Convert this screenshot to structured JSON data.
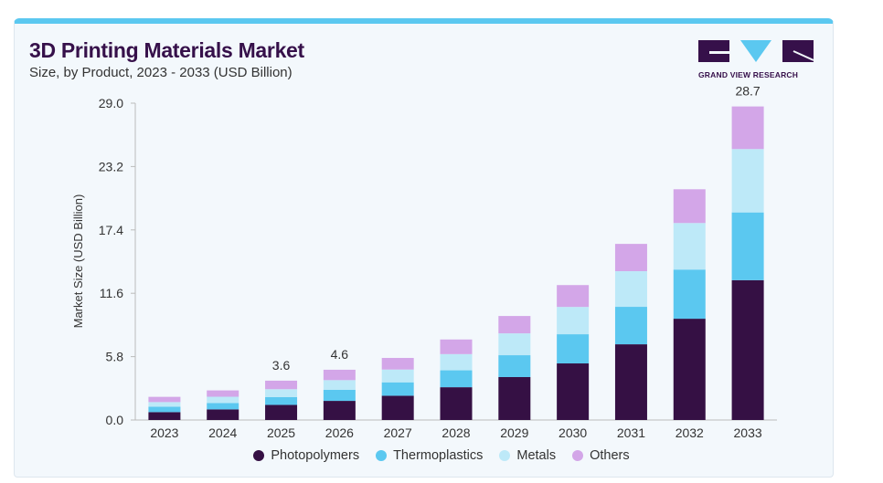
{
  "header": {
    "title": "3D Printing Materials Market",
    "subtitle": "Size, by Product, 2023 - 2033 (USD Billion)",
    "logo_text": "GRAND VIEW RESEARCH"
  },
  "colors": {
    "Photopolymers": "#351044",
    "Thermoplastics": "#5bc8f0",
    "Metals": "#bde9f8",
    "Others": "#d3a6e8",
    "accent": "#5bc8f0"
  },
  "chart_data": {
    "type": "bar",
    "stacked": true,
    "title": "3D Printing Materials Market",
    "subtitle": "Size, by Product, 2023 - 2033 (USD Billion)",
    "xlabel": "",
    "ylabel": "Market Size (USD Billion)",
    "ylim": [
      0,
      29
    ],
    "yticks": [
      "0.0",
      "5.8",
      "11.6",
      "17.4",
      "23.2",
      "29.0"
    ],
    "categories": [
      "2023",
      "2024",
      "2025",
      "2026",
      "2027",
      "2028",
      "2029",
      "2030",
      "2031",
      "2032",
      "2033"
    ],
    "series": [
      {
        "name": "Photopolymers",
        "values": [
          0.72,
          0.97,
          1.38,
          1.75,
          2.22,
          3.0,
          3.93,
          5.18,
          6.93,
          9.27,
          12.8
        ]
      },
      {
        "name": "Thermoplastics",
        "values": [
          0.5,
          0.58,
          0.72,
          1.01,
          1.23,
          1.55,
          2.0,
          2.67,
          3.43,
          4.5,
          6.2
        ]
      },
      {
        "name": "Metals",
        "values": [
          0.42,
          0.58,
          0.72,
          0.89,
          1.17,
          1.48,
          2.0,
          2.5,
          3.26,
          4.26,
          5.8
        ]
      },
      {
        "name": "Others",
        "values": [
          0.48,
          0.58,
          0.78,
          0.95,
          1.06,
          1.34,
          1.59,
          2.0,
          2.5,
          3.09,
          3.9
        ]
      }
    ],
    "data_labels": [
      {
        "category": "2025",
        "text": "3.6"
      },
      {
        "category": "2026",
        "text": "4.6"
      },
      {
        "category": "2033",
        "text": "28.7"
      }
    ],
    "legend": "bottom",
    "grid": false
  }
}
